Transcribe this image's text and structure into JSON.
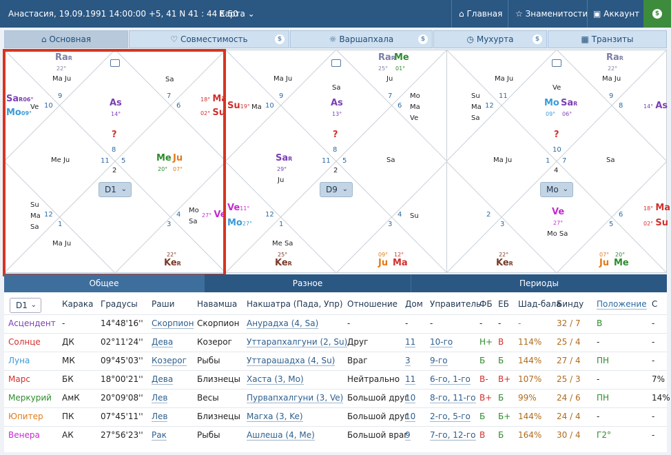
{
  "topbar": {
    "person": "Анастасия, 19.09.1991 14:00:00 +5, 41 N 41 : 44 E 50",
    "map": "Карта",
    "home": "Главная",
    "celebs": "Знаменитости",
    "account": "Аккаунт",
    "coin": "$"
  },
  "tabs": [
    "Основная",
    "Совместимость",
    "Варшапхала",
    "Мухурта",
    "Транзиты"
  ],
  "charts": [
    {
      "select": "D1",
      "labels": {
        "ra": "Ra",
        "ra_deg": "22°",
        "maju_top": "Ma Ju",
        "sa_top": "Sa",
        "n9": "9",
        "n7": "7",
        "n10": "10",
        "n6": "6",
        "sa_l": "Sa",
        "sa_l_deg": "06°",
        "ve_l": "Ve",
        "mo_l": "Mo",
        "mo_l_deg": "09°",
        "as": "As",
        "as_deg": "14°",
        "q": "?",
        "n8": "8",
        "ma_r": "Ma",
        "ma_r_deg": "18°",
        "su_r": "Su",
        "su_r_deg": "02°",
        "maju_mid": "Me Ju",
        "n11": "11",
        "n5": "5",
        "n2": "2",
        "me": "Me",
        "me_deg": "20°",
        "ju": "Ju",
        "ju_deg": "07°",
        "su_bl": "Su",
        "ma_bl": "Ma",
        "sa_bl": "Sa",
        "n12": "12",
        "n1": "1",
        "n3": "3",
        "n4": "4",
        "mo_br": "Mo",
        "sa_br": "Sa",
        "ve_br": "Ve",
        "ve_br_deg": "27°",
        "maju_bot": "Ma Ju",
        "ke": "Ke",
        "ke_deg": "22°"
      }
    },
    {
      "select": "D9",
      "labels": {
        "ra": "Ra",
        "ra_deg": "25°",
        "me": "Me",
        "me_deg": "01°",
        "maju_top": "Ma Ju",
        "ju_top": "Ju",
        "sa_top": "Sa",
        "n9": "9",
        "n7": "7",
        "n10": "10",
        "n6": "6",
        "su": "Su",
        "su_deg": "19°",
        "ma": "Ma",
        "as": "As",
        "as_deg": "13°",
        "q": "?",
        "mo": "Mo",
        "ma2": "Ma",
        "ve": "Ve",
        "n8": "8",
        "n11": "11",
        "n5": "5",
        "n2": "2",
        "sa": "Sa",
        "sa_deg": "29°",
        "ju_mid": "Ju",
        "sa_r": "Sa",
        "ve_bl": "Ve",
        "ve_bl_deg": "11°",
        "mo_bl": "Mo",
        "mo_bl_deg": "27°",
        "n12": "12",
        "n1": "1",
        "n3": "3",
        "n4": "4",
        "su_br": "Su",
        "mesa": "Me Sa",
        "ke": "Ke",
        "ke_deg": "25°",
        "ju_b": "Ju",
        "ju_b_deg": "09°",
        "ma_b": "Ma",
        "ma_b_deg": "12°"
      }
    },
    {
      "select": "Mo",
      "labels": {
        "ra": "Ra",
        "ra_deg": "22°",
        "maju_top": "Ma Ju",
        "ve_top": "Ve",
        "su": "Su",
        "ma": "Ma",
        "sa": "Sa",
        "n11": "11",
        "n12": "12",
        "n9": "9",
        "n8": "8",
        "mo": "Mo",
        "mo_deg": "09°",
        "sa2": "Sa",
        "sa2_deg": "06°",
        "as": "As",
        "as_deg": "14°",
        "q": "?",
        "n10": "10",
        "n7": "7",
        "n1": "1",
        "n4": "4",
        "maju_mid": "Ma Ju",
        "sa_r": "Sa",
        "n2": "2",
        "n3": "3",
        "n5": "5",
        "n6": "6",
        "ve": "Ve",
        "ve_deg": "27°",
        "mosa": "Mo Sa",
        "ma_r": "Ma",
        "ma_r_deg": "18°",
        "su_r": "Su",
        "su_r_deg": "02°",
        "ke": "Ke",
        "ke_deg": "22°",
        "ju": "Ju",
        "ju_deg": "07°",
        "me": "Me",
        "me_deg": "20°"
      }
    }
  ],
  "lower_tabs": [
    "Общее",
    "Разное",
    "Периоды"
  ],
  "table": {
    "select": "D1",
    "headers": [
      "Карака",
      "Градусы",
      "Раши",
      "Навамша",
      "Накшатра (Пада, Упр)",
      "Отношение",
      "Дом",
      "Управитель",
      "ФБ",
      "ЕБ",
      "Шад-бала",
      "Бинду",
      "Положение",
      "С"
    ],
    "rows": [
      {
        "name": "Асцендент",
        "color": "#7b3fb5",
        "c": [
          "-",
          "14°48'16''",
          "Скорпион",
          "Скорпион",
          "Анурадха (4, Sa)",
          "-",
          "-",
          "-",
          "-",
          "-",
          "-",
          "32 / 7",
          "В",
          "-"
        ]
      },
      {
        "name": "Солнце",
        "color": "#d0312d",
        "c": [
          "ДК",
          "02°11'24''",
          "Дева",
          "Козерог",
          "Уттарапхалгуни (2, Su)",
          "Друг",
          "11",
          "10-го",
          "Н+",
          "В",
          "114%",
          "25 / 4",
          "-",
          "-"
        ]
      },
      {
        "name": "Луна",
        "color": "#3b9ad9",
        "c": [
          "МК",
          "09°45'03''",
          "Козерог",
          "Рыбы",
          "Уттарашадха (4, Su)",
          "Враг",
          "3",
          "9-го",
          "Б",
          "Б",
          "144%",
          "27 / 4",
          "ПН",
          "-"
        ]
      },
      {
        "name": "Марс",
        "color": "#d0312d",
        "c": [
          "БК",
          "18°00'21''",
          "Дева",
          "Близнецы",
          "Хаста (3, Mo)",
          "Нейтрально",
          "11",
          "6-го, 1-го",
          "В-",
          "В+",
          "107%",
          "25 / 3",
          "-",
          "7%"
        ]
      },
      {
        "name": "Меркурий",
        "color": "#2e8b2e",
        "c": [
          "АмК",
          "20°09'08''",
          "Лев",
          "Весы",
          "Пурвапхалгуни (3, Ve)",
          "Большой друг",
          "10",
          "8-го, 11-го",
          "В+",
          "Б",
          "99%",
          "24 / 6",
          "ПН",
          "14%"
        ]
      },
      {
        "name": "Юпитер",
        "color": "#e07b1a",
        "c": [
          "ПК",
          "07°45'11''",
          "Лев",
          "Близнецы",
          "Магха (3, Ke)",
          "Большой друг",
          "10",
          "2-го, 5-го",
          "Б",
          "Б+",
          "144%",
          "24 / 4",
          "-",
          "-"
        ]
      },
      {
        "name": "Венера",
        "color": "#c42bd0",
        "c": [
          "АК",
          "27°56'23''",
          "Рак",
          "Рыбы",
          "Ашлеша (4, Me)",
          "Большой враг",
          "9",
          "7-го, 12-го",
          "В",
          "Б",
          "164%",
          "30 / 4",
          "Г2°",
          "-"
        ]
      }
    ]
  }
}
